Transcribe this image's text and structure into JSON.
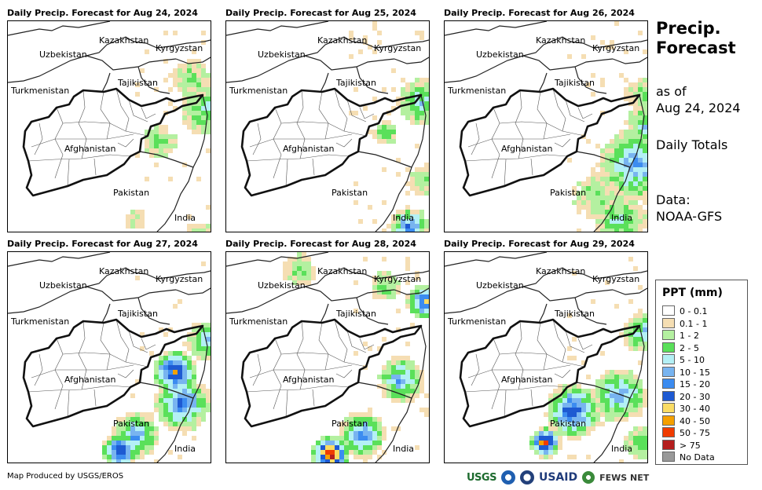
{
  "panels": [
    {
      "title": "Daily Precip. Forecast for Aug 24, 2024"
    },
    {
      "title": "Daily Precip. Forecast for Aug 25, 2024"
    },
    {
      "title": "Daily Precip. Forecast for Aug 26, 2024"
    },
    {
      "title": "Daily Precip. Forecast for Aug 27, 2024"
    },
    {
      "title": "Daily Precip. Forecast for Aug 28, 2024"
    },
    {
      "title": "Daily Precip. Forecast for Aug 29, 2024"
    }
  ],
  "map_labels": {
    "kazakhstan": "Kazakhstan",
    "kyrgyzstan": "Kyrgyzstan",
    "uzbekistan": "Uzbekistan",
    "tajikistan": "Tajikistan",
    "turkmenistan": "Turkmenistan",
    "afghanistan": "Afghanistan",
    "pakistan": "Pakistan",
    "india": "India"
  },
  "side": {
    "title_line1": "Precip.",
    "title_line2": "Forecast",
    "asof_line1": "as of",
    "asof_line2": "Aug 24, 2024",
    "daily": "Daily Totals",
    "data_line1": "Data:",
    "data_line2": "NOAA-GFS"
  },
  "legend": {
    "title": "PPT (mm)",
    "items": [
      {
        "label": "0 - 0.1",
        "color": "#ffffff"
      },
      {
        "label": "0.1 - 1",
        "color": "#f5deb3"
      },
      {
        "label": "1 - 2",
        "color": "#b4f0a0"
      },
      {
        "label": "2 - 5",
        "color": "#5ae05a"
      },
      {
        "label": "5 - 10",
        "color": "#b4f0f5"
      },
      {
        "label": "10 - 15",
        "color": "#78b4f0"
      },
      {
        "label": "15 - 20",
        "color": "#3c8cf0"
      },
      {
        "label": "20 - 30",
        "color": "#1e5ad2"
      },
      {
        "label": "30 - 40",
        "color": "#fadc64"
      },
      {
        "label": "40 - 50",
        "color": "#f5a000"
      },
      {
        "label": "50 - 75",
        "color": "#f03c00"
      },
      {
        "label": "> 75",
        "color": "#b41e1e"
      },
      {
        "label": "No Data",
        "color": "#999999"
      }
    ]
  },
  "credit": "Map Produced by USGS/EROS",
  "logos": {
    "usgs": "USGS",
    "usaid": "USAID",
    "fews": "FEWS NET"
  }
}
